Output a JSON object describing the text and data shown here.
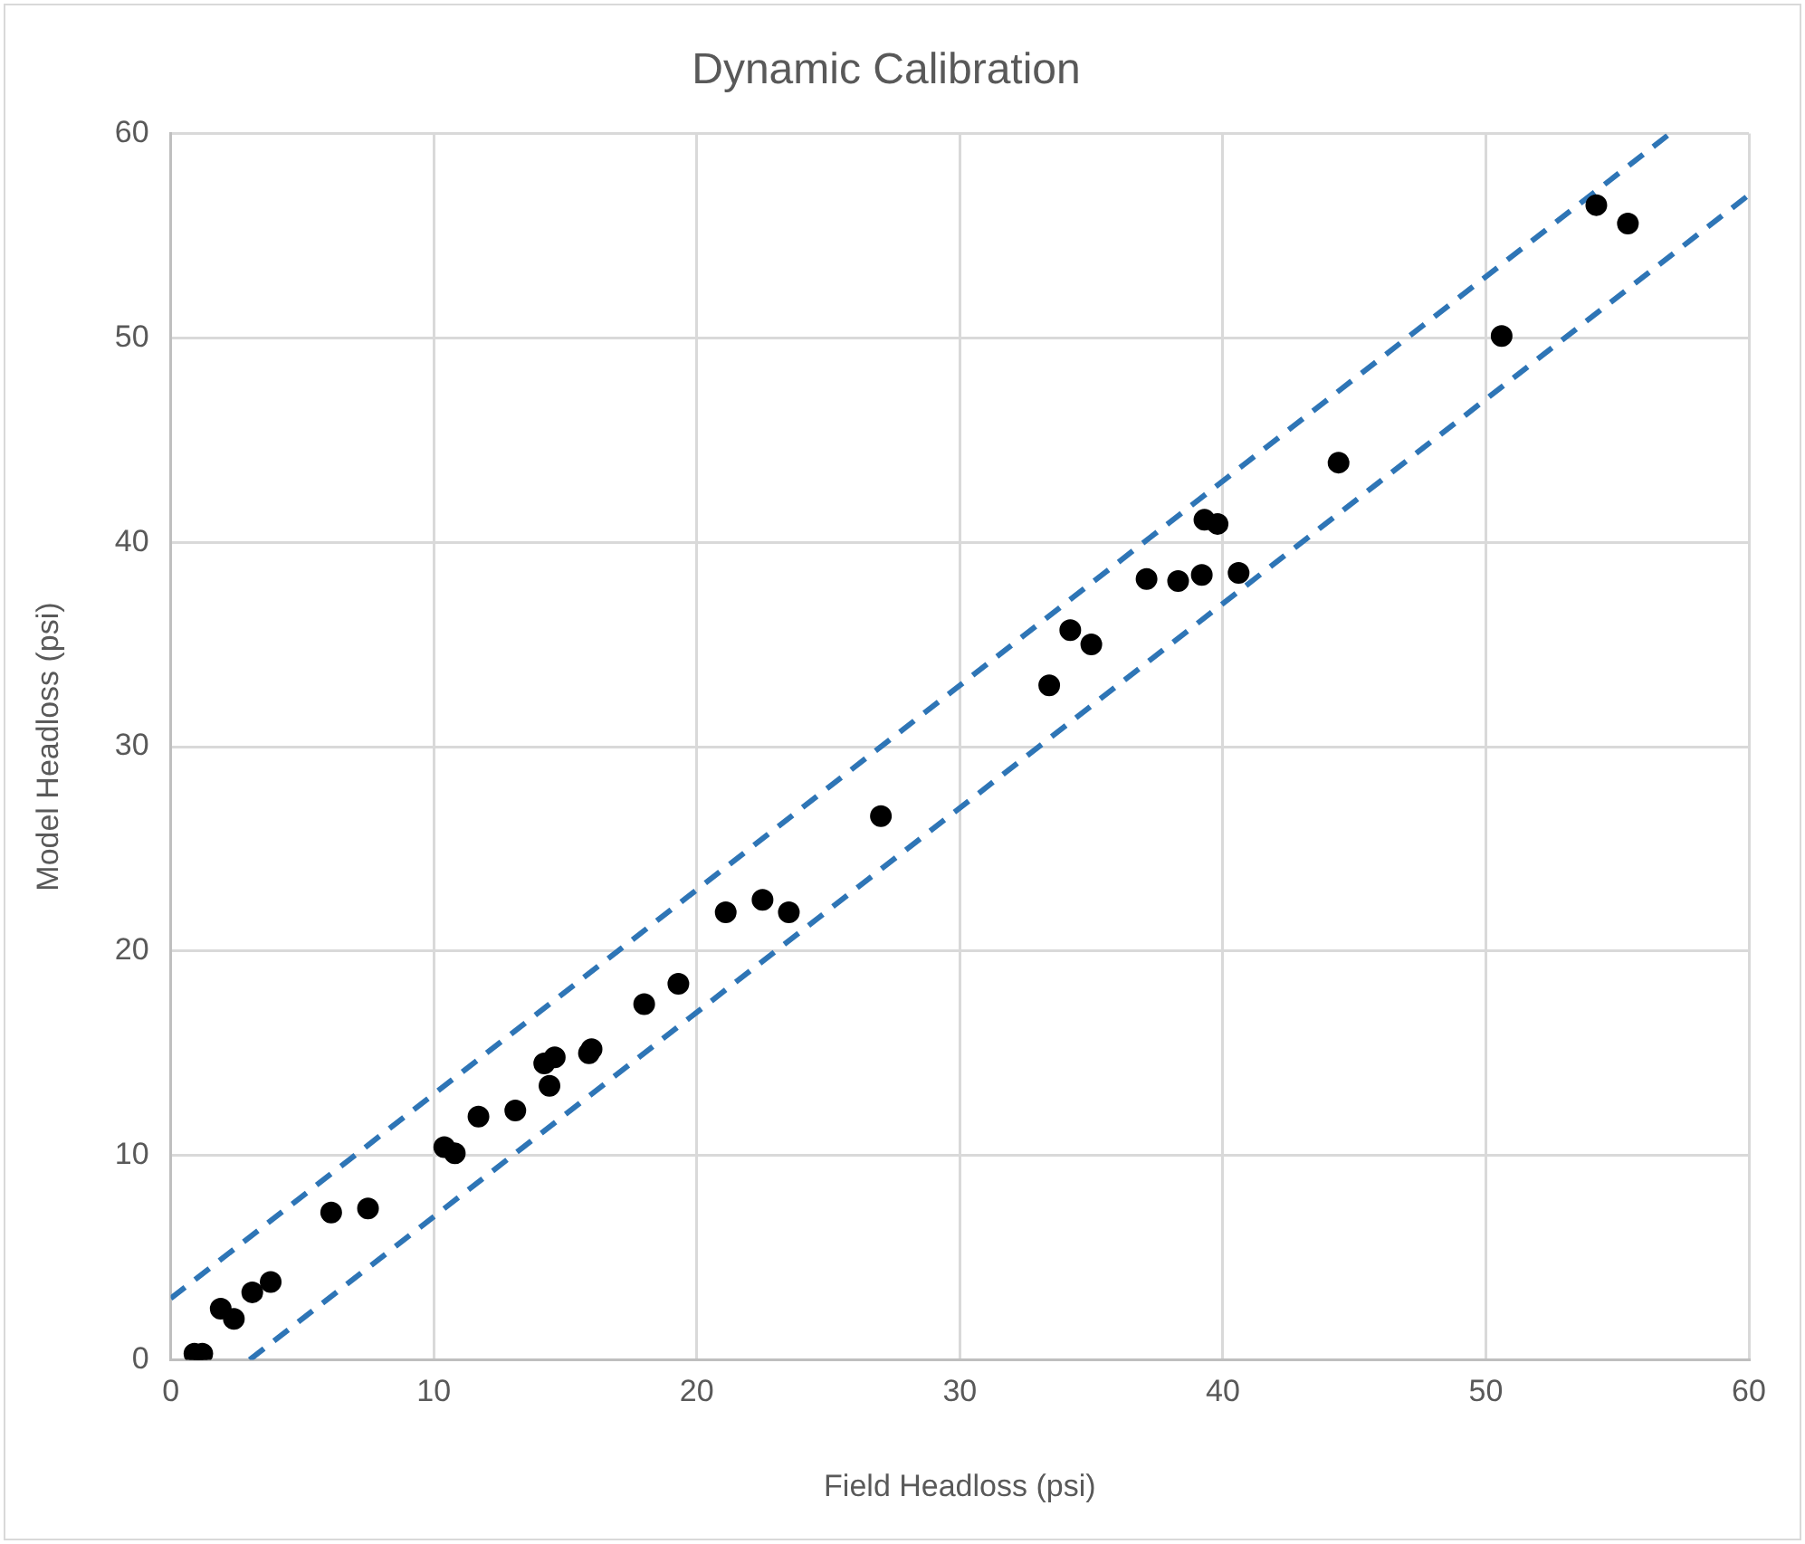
{
  "chart_data": {
    "type": "scatter",
    "title": "Dynamic Calibration",
    "xlabel": "Field Headloss (psi)",
    "ylabel": "Model Headloss (psi)",
    "xlim": [
      0,
      60
    ],
    "ylim": [
      0,
      60
    ],
    "xticks": [
      0,
      10,
      20,
      30,
      40,
      50,
      60
    ],
    "yticks": [
      0,
      10,
      20,
      30,
      40,
      50,
      60
    ],
    "grid": true,
    "legend": false,
    "marker": "circle",
    "series": [
      {
        "color": "#000000",
        "x": [
          0.9,
          1.2,
          1.9,
          2.4,
          3.1,
          3.8,
          6.1,
          7.5,
          10.4,
          10.8,
          11.7,
          13.1,
          14.2,
          14.4,
          14.6,
          15.9,
          16.0,
          18.0,
          19.3,
          21.1,
          22.5,
          23.5,
          27.0,
          33.4,
          34.2,
          35.0,
          37.1,
          38.3,
          39.2,
          39.3,
          39.8,
          40.6,
          44.4,
          50.6,
          54.2,
          55.4
        ],
        "values": [
          0.3,
          0.3,
          2.5,
          2.0,
          3.3,
          3.8,
          7.2,
          7.4,
          10.4,
          10.1,
          11.9,
          12.2,
          14.5,
          13.4,
          14.8,
          15.0,
          15.2,
          17.4,
          18.4,
          21.9,
          22.5,
          21.9,
          26.6,
          33.0,
          35.7,
          35.0,
          38.2,
          38.1,
          38.4,
          41.1,
          40.9,
          38.5,
          43.9,
          50.1,
          56.5,
          55.6
        ]
      },
      {
        "type": "line",
        "color": "#2e75b6",
        "line_style": "dashed",
        "marker": "none",
        "x": [
          0,
          57
        ],
        "values": [
          3,
          60
        ]
      },
      {
        "type": "line",
        "color": "#2e75b6",
        "line_style": "dashed",
        "marker": "none",
        "x": [
          3,
          60
        ],
        "values": [
          0,
          57
        ]
      }
    ]
  }
}
